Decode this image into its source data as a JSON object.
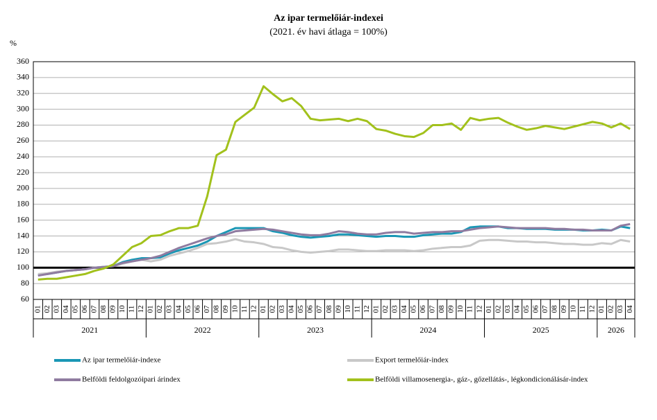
{
  "chart_data": {
    "type": "line",
    "title": "Az ipar termelőiár-indexei",
    "subtitle": "(2021. év havi átlaga = 100%)",
    "y_unit": "%",
    "categories": [
      "01",
      "02",
      "03",
      "04",
      "05",
      "06",
      "07",
      "08",
      "09",
      "10",
      "11",
      "12",
      "01",
      "02",
      "03",
      "04",
      "05",
      "06",
      "07",
      "08",
      "09",
      "10",
      "11",
      "12",
      "01",
      "02",
      "03",
      "04",
      "05",
      "06",
      "07",
      "08",
      "09",
      "10",
      "11",
      "12",
      "01",
      "02",
      "03",
      "04",
      "05",
      "06",
      "07",
      "08",
      "09",
      "10",
      "11",
      "12",
      "01",
      "02",
      "03",
      "04",
      "05",
      "06",
      "07",
      "08",
      "09",
      "10",
      "11",
      "12",
      "01",
      "02",
      "03",
      "04"
    ],
    "years": [
      "2021",
      "2022",
      "2023",
      "2024",
      "2025",
      "2026"
    ],
    "ylim": [
      60,
      360
    ],
    "yticks": [
      60,
      80,
      100,
      120,
      140,
      160,
      180,
      200,
      220,
      240,
      260,
      280,
      300,
      320,
      340,
      360
    ],
    "grid": true,
    "baseline": 100,
    "series": [
      {
        "name": "Az ipar termelőiár-indexe",
        "color": "#1a97b5",
        "values": [
          91,
          92,
          94,
          96,
          97,
          98,
          100,
          101,
          102,
          107,
          110,
          112,
          112,
          113,
          118,
          122,
          125,
          128,
          133,
          140,
          145,
          150,
          150,
          150,
          150,
          146,
          144,
          141,
          139,
          138,
          139,
          140,
          142,
          142,
          141,
          140,
          139,
          140,
          140,
          139,
          139,
          141,
          142,
          143,
          143,
          145,
          151,
          152,
          152,
          152,
          150,
          150,
          149,
          149,
          149,
          148,
          148,
          148,
          147,
          147,
          148,
          147,
          152,
          150
        ]
      },
      {
        "name": "Export termelőiár-index",
        "color": "#c8c8c8",
        "values": [
          92,
          93,
          95,
          96,
          97,
          98,
          100,
          101,
          102,
          105,
          108,
          110,
          108,
          110,
          115,
          118,
          121,
          125,
          130,
          131,
          133,
          136,
          133,
          132,
          130,
          126,
          125,
          122,
          120,
          119,
          120,
          121,
          123,
          123,
          122,
          121,
          121,
          122,
          122,
          122,
          121,
          122,
          124,
          125,
          126,
          126,
          128,
          134,
          135,
          135,
          134,
          133,
          133,
          132,
          132,
          131,
          130,
          130,
          129,
          129,
          131,
          130,
          135,
          133
        ]
      },
      {
        "name": "Belföldi feldolgozóipari árindex",
        "color": "#8f7ba0",
        "values": [
          90,
          92,
          94,
          96,
          97,
          98,
          100,
          101,
          102,
          106,
          108,
          110,
          112,
          115,
          120,
          125,
          129,
          133,
          137,
          140,
          142,
          146,
          147,
          148,
          149,
          148,
          146,
          144,
          142,
          141,
          141,
          143,
          146,
          145,
          143,
          142,
          142,
          144,
          145,
          145,
          143,
          144,
          145,
          145,
          146,
          146,
          148,
          150,
          151,
          152,
          151,
          150,
          150,
          150,
          150,
          149,
          149,
          148,
          148,
          147,
          147,
          147,
          153,
          155
        ]
      },
      {
        "name": "Belföldi villamosenergia-, gáz-, gőzellátás-, légkondicionálásár-index",
        "color": "#a2c11c",
        "values": [
          85,
          86,
          86,
          88,
          90,
          92,
          96,
          99,
          104,
          115,
          126,
          131,
          140,
          141,
          146,
          150,
          150,
          153,
          190,
          242,
          249,
          284,
          293,
          302,
          329,
          319,
          310,
          314,
          304,
          288,
          286,
          287,
          288,
          285,
          288,
          285,
          275,
          273,
          269,
          266,
          265,
          270,
          280,
          280,
          282,
          274,
          289,
          286,
          288,
          289,
          283,
          278,
          274,
          276,
          279,
          277,
          275,
          278,
          281,
          284,
          282,
          277,
          282,
          275
        ]
      }
    ]
  }
}
